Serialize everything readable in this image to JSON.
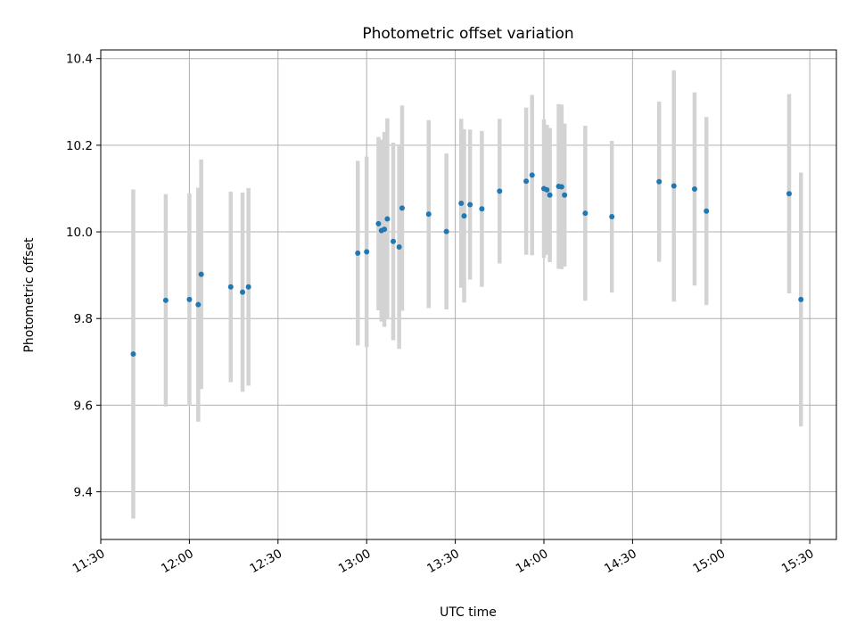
{
  "chart_data": {
    "type": "scatter",
    "title": "Photometric offset variation",
    "xlabel": "UTC time",
    "ylabel": "Photometric offset",
    "x_tick_labels": [
      "11:30",
      "12:00",
      "12:30",
      "13:00",
      "13:30",
      "14:00",
      "14:30",
      "15:00",
      "15:30"
    ],
    "y_ticks": [
      9.4,
      9.6,
      9.8,
      10.0,
      10.2,
      10.4
    ],
    "xlim": [
      "11:30",
      "15:39"
    ],
    "ylim": [
      9.29,
      10.42
    ],
    "grid": true,
    "marker_color": "#1f77b4",
    "errorbar_color": "#d3d3d3",
    "points": [
      {
        "x": "11:41",
        "y": 9.718,
        "err": 0.38
      },
      {
        "x": "11:52",
        "y": 9.842,
        "err": 0.245
      },
      {
        "x": "12:00",
        "y": 9.844,
        "err": 0.245
      },
      {
        "x": "12:03",
        "y": 9.832,
        "err": 0.27
      },
      {
        "x": "12:04",
        "y": 9.902,
        "err": 0.265
      },
      {
        "x": "12:14",
        "y": 9.873,
        "err": 0.22
      },
      {
        "x": "12:18",
        "y": 9.861,
        "err": 0.23
      },
      {
        "x": "12:20",
        "y": 9.873,
        "err": 0.228
      },
      {
        "x": "12:57",
        "y": 9.951,
        "err": 0.213
      },
      {
        "x": "13:00",
        "y": 9.954,
        "err": 0.22
      },
      {
        "x": "13:04",
        "y": 10.019,
        "err": 0.2
      },
      {
        "x": "13:05",
        "y": 10.003,
        "err": 0.21
      },
      {
        "x": "13:06",
        "y": 10.006,
        "err": 0.225
      },
      {
        "x": "13:07",
        "y": 10.03,
        "err": 0.232
      },
      {
        "x": "13:09",
        "y": 9.978,
        "err": 0.228
      },
      {
        "x": "13:11",
        "y": 9.965,
        "err": 0.235
      },
      {
        "x": "13:12",
        "y": 10.055,
        "err": 0.237
      },
      {
        "x": "13:21",
        "y": 10.041,
        "err": 0.217
      },
      {
        "x": "13:27",
        "y": 10.001,
        "err": 0.18
      },
      {
        "x": "13:32",
        "y": 10.066,
        "err": 0.195
      },
      {
        "x": "13:33",
        "y": 10.037,
        "err": 0.2
      },
      {
        "x": "13:35",
        "y": 10.063,
        "err": 0.173
      },
      {
        "x": "13:39",
        "y": 10.053,
        "err": 0.18
      },
      {
        "x": "13:45",
        "y": 10.094,
        "err": 0.167
      },
      {
        "x": "13:54",
        "y": 10.117,
        "err": 0.17
      },
      {
        "x": "13:56",
        "y": 10.131,
        "err": 0.185
      },
      {
        "x": "14:00",
        "y": 10.1,
        "err": 0.16
      },
      {
        "x": "14:01",
        "y": 10.097,
        "err": 0.15
      },
      {
        "x": "14:02",
        "y": 10.085,
        "err": 0.155
      },
      {
        "x": "14:05",
        "y": 10.105,
        "err": 0.19
      },
      {
        "x": "14:06",
        "y": 10.104,
        "err": 0.19
      },
      {
        "x": "14:07",
        "y": 10.085,
        "err": 0.165
      },
      {
        "x": "14:14",
        "y": 10.043,
        "err": 0.202
      },
      {
        "x": "14:23",
        "y": 10.035,
        "err": 0.175
      },
      {
        "x": "14:39",
        "y": 10.116,
        "err": 0.185
      },
      {
        "x": "14:44",
        "y": 10.106,
        "err": 0.267
      },
      {
        "x": "14:51",
        "y": 10.099,
        "err": 0.223
      },
      {
        "x": "14:55",
        "y": 10.048,
        "err": 0.217
      },
      {
        "x": "15:23",
        "y": 10.088,
        "err": 0.23
      },
      {
        "x": "15:27",
        "y": 9.844,
        "err": 0.293
      }
    ]
  }
}
